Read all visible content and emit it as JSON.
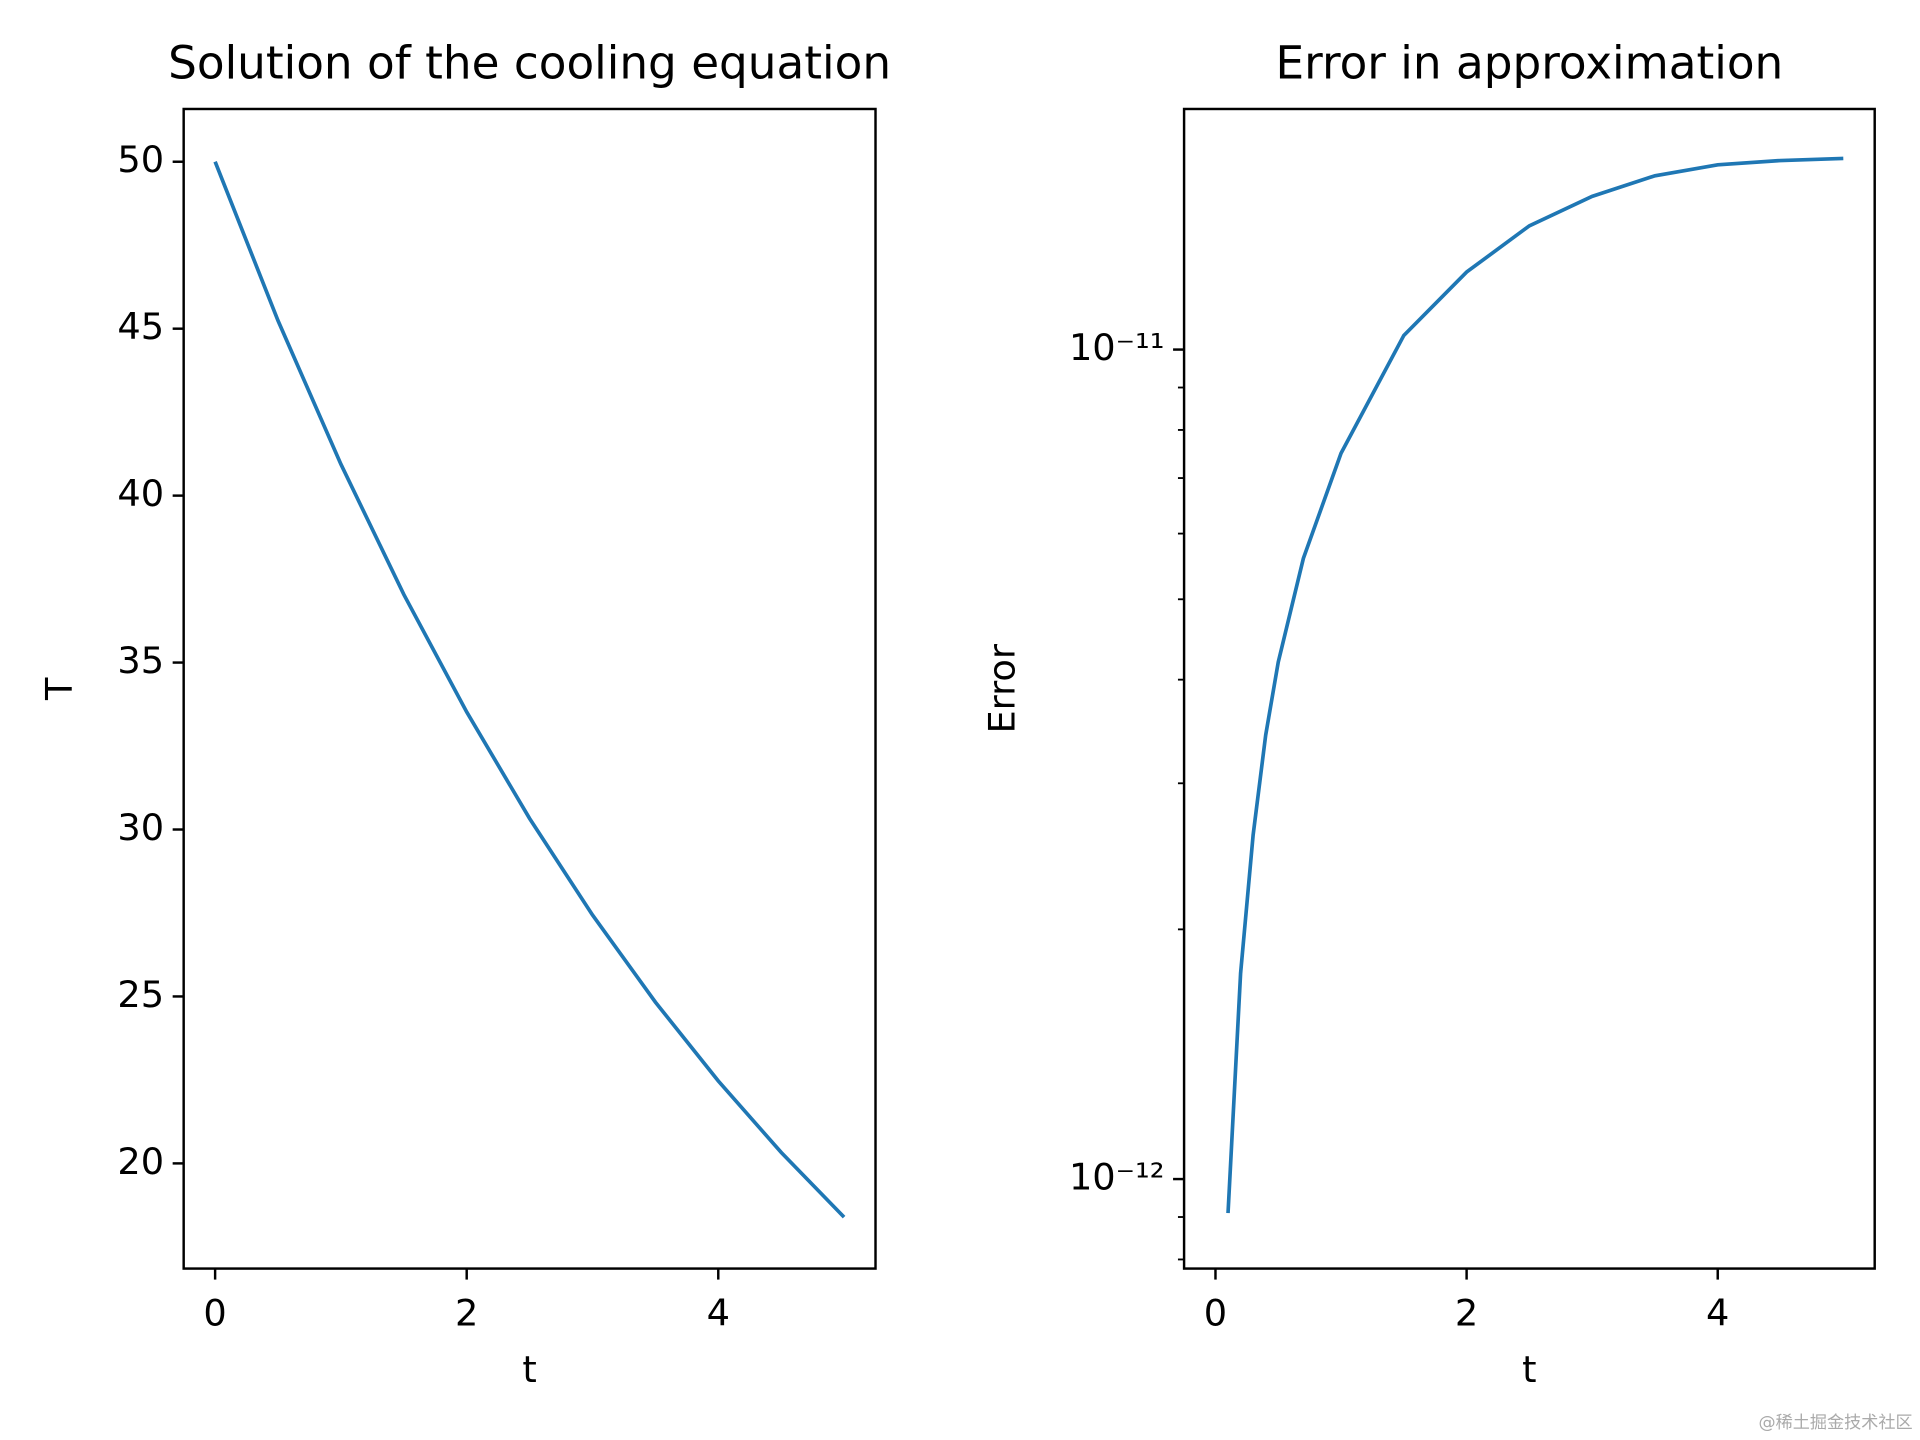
{
  "chart_data": [
    {
      "type": "line",
      "title": "Solution of the cooling equation",
      "xlabel": "t",
      "ylabel": "T",
      "x": [
        0,
        0.5,
        1,
        1.5,
        2,
        2.5,
        3,
        3.5,
        4,
        4.5,
        5
      ],
      "values": [
        50,
        45.24,
        40.94,
        37.04,
        33.52,
        30.33,
        27.44,
        24.83,
        22.47,
        20.33,
        18.39
      ],
      "color": "#1f77b4",
      "xlim": [
        -0.25,
        5.25
      ],
      "ylim": [
        16.85,
        51.58
      ],
      "xticks": [
        0,
        2,
        4
      ],
      "yticks": [
        20,
        25,
        30,
        35,
        40,
        45,
        50
      ],
      "ylog": false
    },
    {
      "type": "line",
      "title": "Error in approximation",
      "xlabel": "t",
      "ylabel": "Error",
      "x": [
        0.1,
        0.2,
        0.3,
        0.4,
        0.5,
        0.7,
        1,
        1.5,
        2,
        2.5,
        3,
        3.5,
        4,
        4.5,
        5
      ],
      "values": [
        9.1e-13,
        1.77e-12,
        2.6e-12,
        3.43e-12,
        4.2e-12,
        5.6e-12,
        7.5e-12,
        1.04e-11,
        1.24e-11,
        1.41e-11,
        1.53e-11,
        1.62e-11,
        1.67e-11,
        1.69e-11,
        1.7e-11
      ],
      "color": "#1f77b4",
      "xlim": [
        -0.25,
        5.25
      ],
      "ylim": [
        7.8e-13,
        1.95e-11
      ],
      "xticks": [
        0,
        2,
        4
      ],
      "yticks": [
        {
          "value": 1e-12,
          "label": "10⁻¹²"
        },
        {
          "value": 1e-11,
          "label": "10⁻¹¹"
        }
      ],
      "yminorticks": [
        8e-13,
        9e-13,
        2e-12,
        3e-12,
        4e-12,
        5e-12,
        6e-12,
        7e-12,
        8e-12,
        9e-12
      ],
      "ylog": true
    }
  ],
  "watermark": "@稀土掘金技术社区"
}
